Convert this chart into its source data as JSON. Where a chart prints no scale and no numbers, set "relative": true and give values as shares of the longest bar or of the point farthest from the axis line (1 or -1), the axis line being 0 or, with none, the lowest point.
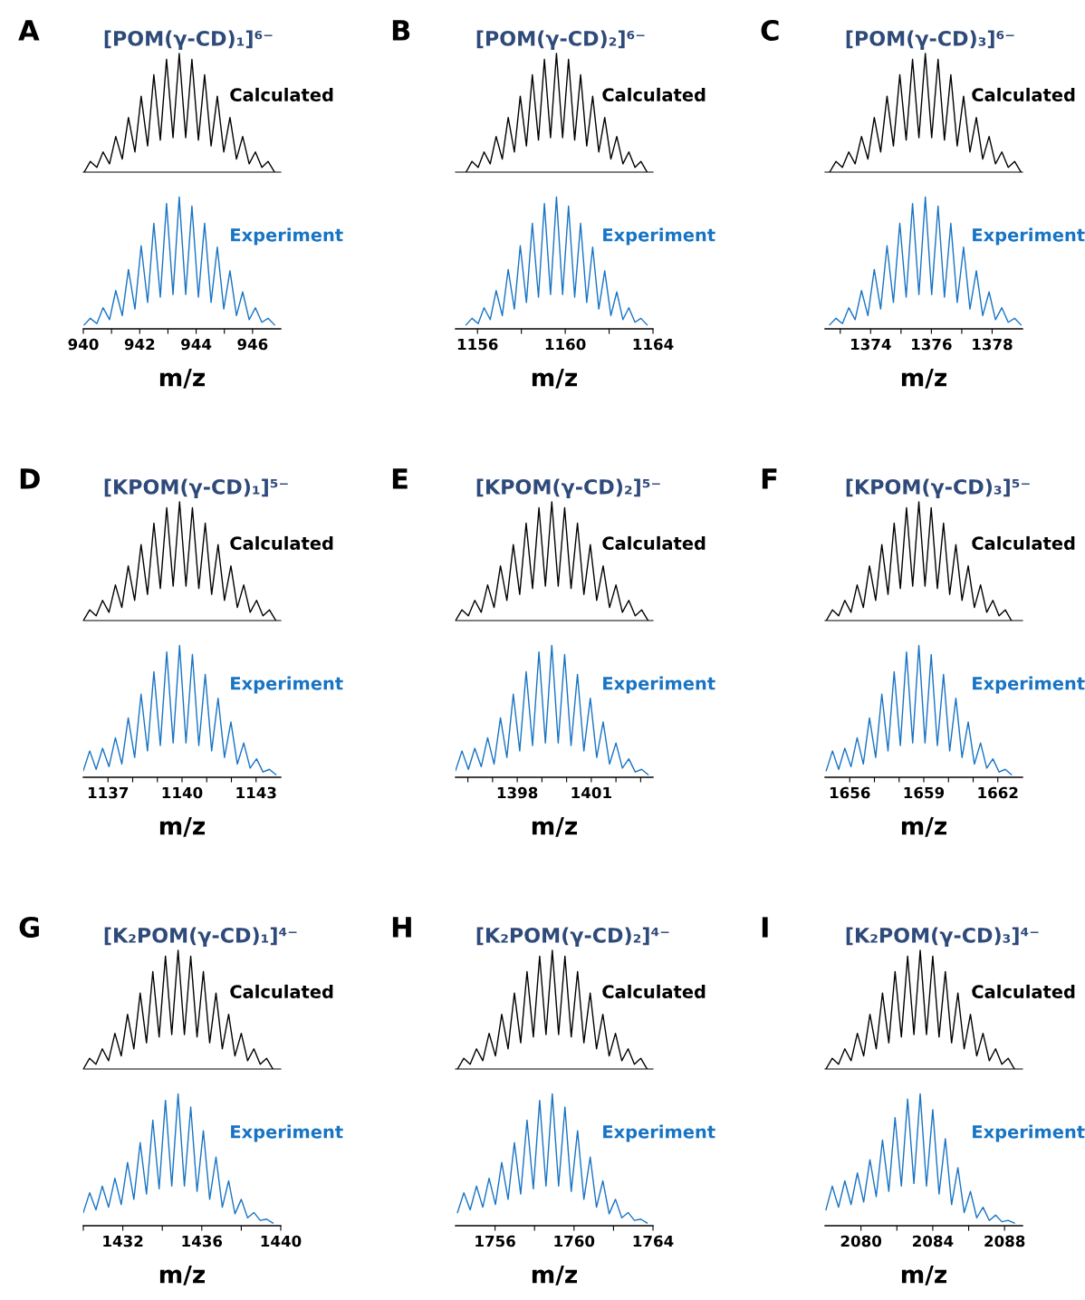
{
  "chart_data": [
    {
      "type": "line",
      "relative": true,
      "title": "[POM(γ-CD)₁]⁶⁻",
      "annotations": [
        "A"
      ],
      "xlim": [
        940,
        947
      ],
      "tick_labels": false,
      "x": [
        940.03,
        940.25,
        940.48,
        940.7,
        940.93,
        941.15,
        941.38,
        941.6,
        941.83,
        942.05,
        942.28,
        942.5,
        942.73,
        942.95,
        943.18,
        943.4,
        943.63,
        943.85,
        944.08,
        944.3,
        944.53,
        944.75,
        944.98,
        945.2,
        945.43,
        945.65,
        945.88,
        946.1,
        946.33,
        946.55,
        946.78
      ],
      "series": [
        {
          "name": "Calculated",
          "color": "#000000",
          "values": [
            0.0,
            0.09,
            0.04,
            0.17,
            0.07,
            0.3,
            0.11,
            0.46,
            0.17,
            0.64,
            0.22,
            0.82,
            0.27,
            0.95,
            0.29,
            1.0,
            0.29,
            0.95,
            0.27,
            0.82,
            0.22,
            0.64,
            0.17,
            0.46,
            0.11,
            0.3,
            0.07,
            0.17,
            0.04,
            0.09,
            0.0
          ]
        }
      ]
    },
    {
      "type": "line",
      "relative": true,
      "xlabel": "m/z",
      "xlim": [
        940,
        947
      ],
      "xticks": [
        940,
        {
          "value": 941,
          "label": null
        },
        942,
        {
          "value": 943,
          "label": null
        },
        944,
        {
          "value": 945,
          "label": null
        },
        946
      ],
      "tick_labels": "x",
      "x": [
        940.03,
        940.25,
        940.48,
        940.7,
        940.93,
        941.15,
        941.38,
        941.6,
        941.83,
        942.05,
        942.28,
        942.5,
        942.73,
        942.95,
        943.18,
        943.4,
        943.63,
        943.85,
        944.08,
        944.3,
        944.53,
        944.75,
        944.98,
        945.2,
        945.43,
        945.65,
        945.88,
        946.1,
        946.33,
        946.55,
        946.78
      ],
      "series": [
        {
          "name": "Experiment",
          "color": "#1874c4",
          "values": [
            0.03,
            0.08,
            0.04,
            0.16,
            0.07,
            0.29,
            0.1,
            0.45,
            0.15,
            0.63,
            0.2,
            0.8,
            0.24,
            0.95,
            0.26,
            1.0,
            0.26,
            0.93,
            0.24,
            0.8,
            0.2,
            0.62,
            0.15,
            0.44,
            0.1,
            0.28,
            0.07,
            0.16,
            0.05,
            0.08,
            0.03
          ]
        }
      ]
    },
    {
      "type": "line",
      "relative": true,
      "title": "[POM(γ-CD)₂]⁶⁻",
      "annotations": [
        "B"
      ],
      "xlim": [
        1155,
        1164
      ],
      "tick_labels": false,
      "x": [
        1155.48,
        1155.75,
        1156.03,
        1156.3,
        1156.58,
        1156.85,
        1157.13,
        1157.4,
        1157.68,
        1157.95,
        1158.23,
        1158.5,
        1158.78,
        1159.05,
        1159.33,
        1159.6,
        1159.88,
        1160.15,
        1160.43,
        1160.7,
        1160.98,
        1161.25,
        1161.53,
        1161.8,
        1162.08,
        1162.35,
        1162.63,
        1162.9,
        1163.18,
        1163.45,
        1163.73
      ],
      "series": [
        {
          "name": "Calculated",
          "color": "#000000",
          "values": [
            0.0,
            0.09,
            0.04,
            0.17,
            0.07,
            0.3,
            0.11,
            0.46,
            0.17,
            0.64,
            0.22,
            0.82,
            0.27,
            0.95,
            0.29,
            1.0,
            0.29,
            0.95,
            0.27,
            0.82,
            0.22,
            0.64,
            0.17,
            0.46,
            0.11,
            0.3,
            0.07,
            0.17,
            0.04,
            0.09,
            0.0
          ]
        }
      ]
    },
    {
      "type": "line",
      "relative": true,
      "xlabel": "m/z",
      "xlim": [
        1155,
        1164
      ],
      "xticks": [
        1156,
        {
          "value": 1158,
          "label": null
        },
        1160,
        {
          "value": 1162,
          "label": null
        },
        1164
      ],
      "tick_labels": "x",
      "x": [
        1155.48,
        1155.75,
        1156.03,
        1156.3,
        1156.58,
        1156.85,
        1157.13,
        1157.4,
        1157.68,
        1157.95,
        1158.23,
        1158.5,
        1158.78,
        1159.05,
        1159.33,
        1159.6,
        1159.88,
        1160.15,
        1160.43,
        1160.7,
        1160.98,
        1161.25,
        1161.53,
        1161.8,
        1162.08,
        1162.35,
        1162.63,
        1162.9,
        1163.18,
        1163.45,
        1163.73
      ],
      "series": [
        {
          "name": "Experiment",
          "color": "#1874c4",
          "values": [
            0.03,
            0.08,
            0.04,
            0.16,
            0.07,
            0.29,
            0.1,
            0.45,
            0.15,
            0.63,
            0.2,
            0.8,
            0.24,
            0.95,
            0.26,
            1.0,
            0.26,
            0.93,
            0.24,
            0.8,
            0.2,
            0.62,
            0.15,
            0.44,
            0.1,
            0.28,
            0.07,
            0.16,
            0.05,
            0.08,
            0.03
          ]
        }
      ]
    },
    {
      "type": "line",
      "relative": true,
      "title": "[POM(γ-CD)₃]⁶⁻",
      "annotations": [
        "C"
      ],
      "xlim": [
        1372.5,
        1379
      ],
      "tick_labels": false,
      "x": [
        1372.65,
        1372.86,
        1373.07,
        1373.28,
        1373.49,
        1373.7,
        1373.91,
        1374.12,
        1374.33,
        1374.54,
        1374.75,
        1374.96,
        1375.17,
        1375.38,
        1375.59,
        1375.8,
        1376.01,
        1376.22,
        1376.43,
        1376.64,
        1376.85,
        1377.06,
        1377.27,
        1377.48,
        1377.69,
        1377.9,
        1378.11,
        1378.32,
        1378.53,
        1378.74,
        1378.95
      ],
      "series": [
        {
          "name": "Calculated",
          "color": "#000000",
          "values": [
            0.0,
            0.09,
            0.04,
            0.17,
            0.07,
            0.3,
            0.11,
            0.46,
            0.17,
            0.64,
            0.22,
            0.82,
            0.27,
            0.95,
            0.29,
            1.0,
            0.29,
            0.95,
            0.27,
            0.82,
            0.22,
            0.64,
            0.17,
            0.46,
            0.11,
            0.3,
            0.07,
            0.17,
            0.04,
            0.09,
            0.0
          ]
        }
      ]
    },
    {
      "type": "line",
      "relative": true,
      "xlabel": "m/z",
      "xlim": [
        1372.5,
        1379
      ],
      "xticks": [
        {
          "value": 1373,
          "label": null
        },
        1374,
        {
          "value": 1375,
          "label": null
        },
        1376,
        {
          "value": 1377,
          "label": null
        },
        1378
      ],
      "tick_labels": "x",
      "x": [
        1372.65,
        1372.86,
        1373.07,
        1373.28,
        1373.49,
        1373.7,
        1373.91,
        1374.12,
        1374.33,
        1374.54,
        1374.75,
        1374.96,
        1375.17,
        1375.38,
        1375.59,
        1375.8,
        1376.01,
        1376.22,
        1376.43,
        1376.64,
        1376.85,
        1377.06,
        1377.27,
        1377.48,
        1377.69,
        1377.9,
        1378.11,
        1378.32,
        1378.53,
        1378.74,
        1378.95
      ],
      "series": [
        {
          "name": "Experiment",
          "color": "#1874c4",
          "values": [
            0.03,
            0.08,
            0.04,
            0.16,
            0.07,
            0.29,
            0.1,
            0.45,
            0.15,
            0.63,
            0.2,
            0.8,
            0.24,
            0.95,
            0.26,
            1.0,
            0.26,
            0.93,
            0.24,
            0.8,
            0.2,
            0.62,
            0.15,
            0.44,
            0.1,
            0.28,
            0.07,
            0.16,
            0.05,
            0.08,
            0.03
          ]
        }
      ]
    },
    {
      "type": "line",
      "relative": true,
      "title": "[KPOM(γ-CD)₁]⁵⁻",
      "annotations": [
        "D"
      ],
      "xlim": [
        1136,
        1144
      ],
      "tick_labels": false,
      "x": [
        1136.0,
        1136.26,
        1136.52,
        1136.78,
        1137.04,
        1137.3,
        1137.56,
        1137.82,
        1138.08,
        1138.34,
        1138.6,
        1138.86,
        1139.12,
        1139.38,
        1139.64,
        1139.9,
        1140.16,
        1140.42,
        1140.68,
        1140.94,
        1141.2,
        1141.46,
        1141.72,
        1141.98,
        1142.24,
        1142.5,
        1142.76,
        1143.02,
        1143.28,
        1143.54,
        1143.8
      ],
      "series": [
        {
          "name": "Calculated",
          "color": "#000000",
          "values": [
            0.0,
            0.09,
            0.04,
            0.17,
            0.07,
            0.3,
            0.11,
            0.46,
            0.17,
            0.64,
            0.22,
            0.82,
            0.27,
            0.95,
            0.29,
            1.0,
            0.29,
            0.95,
            0.27,
            0.82,
            0.22,
            0.64,
            0.17,
            0.46,
            0.11,
            0.3,
            0.07,
            0.17,
            0.04,
            0.09,
            0.0
          ]
        }
      ]
    },
    {
      "type": "line",
      "relative": true,
      "xlabel": "m/z",
      "xlim": [
        1136,
        1144
      ],
      "xticks": [
        1137,
        {
          "value": 1138,
          "label": null
        },
        {
          "value": 1139,
          "label": null
        },
        1140,
        {
          "value": 1141,
          "label": null
        },
        {
          "value": 1142,
          "label": null
        },
        1143
      ],
      "tick_labels": "x",
      "x": [
        1136.0,
        1136.26,
        1136.52,
        1136.78,
        1137.04,
        1137.3,
        1137.56,
        1137.82,
        1138.08,
        1138.34,
        1138.6,
        1138.86,
        1139.12,
        1139.38,
        1139.64,
        1139.9,
        1140.16,
        1140.42,
        1140.68,
        1140.94,
        1141.2,
        1141.46,
        1141.72,
        1141.98,
        1142.24,
        1142.5,
        1142.76,
        1143.02,
        1143.28,
        1143.54,
        1143.8
      ],
      "series": [
        {
          "name": "Experiment",
          "color": "#1874c4",
          "values": [
            0.05,
            0.2,
            0.06,
            0.22,
            0.08,
            0.3,
            0.1,
            0.45,
            0.15,
            0.63,
            0.2,
            0.8,
            0.24,
            0.95,
            0.26,
            1.0,
            0.26,
            0.93,
            0.24,
            0.78,
            0.2,
            0.6,
            0.15,
            0.42,
            0.1,
            0.26,
            0.07,
            0.14,
            0.04,
            0.06,
            0.02
          ]
        }
      ]
    },
    {
      "type": "line",
      "relative": true,
      "title": "[KPOM(γ-CD)₂]⁵⁻",
      "annotations": [
        "E"
      ],
      "xlim": [
        1395.5,
        1403.5
      ],
      "tick_labels": false,
      "x": [
        1395.5,
        1395.76,
        1396.02,
        1396.28,
        1396.54,
        1396.8,
        1397.06,
        1397.32,
        1397.58,
        1397.84,
        1398.1,
        1398.36,
        1398.62,
        1398.88,
        1399.14,
        1399.4,
        1399.66,
        1399.92,
        1400.18,
        1400.44,
        1400.7,
        1400.96,
        1401.22,
        1401.48,
        1401.74,
        1402.0,
        1402.26,
        1402.52,
        1402.78,
        1403.04,
        1403.3
      ],
      "series": [
        {
          "name": "Calculated",
          "color": "#000000",
          "values": [
            0.0,
            0.09,
            0.04,
            0.17,
            0.07,
            0.3,
            0.11,
            0.46,
            0.17,
            0.64,
            0.22,
            0.82,
            0.27,
            0.95,
            0.29,
            1.0,
            0.29,
            0.95,
            0.27,
            0.82,
            0.22,
            0.64,
            0.17,
            0.46,
            0.11,
            0.3,
            0.07,
            0.17,
            0.04,
            0.09,
            0.0
          ]
        }
      ]
    },
    {
      "type": "line",
      "relative": true,
      "xlabel": "m/z",
      "xlim": [
        1395.5,
        1403.5
      ],
      "xticks": [
        {
          "value": 1396,
          "label": null
        },
        {
          "value": 1397,
          "label": null
        },
        1398,
        {
          "value": 1399,
          "label": null
        },
        {
          "value": 1400,
          "label": null
        },
        1401,
        {
          "value": 1402,
          "label": null
        },
        {
          "value": 1403,
          "label": null
        }
      ],
      "tick_labels": "x",
      "x": [
        1395.5,
        1395.76,
        1396.02,
        1396.28,
        1396.54,
        1396.8,
        1397.06,
        1397.32,
        1397.58,
        1397.84,
        1398.1,
        1398.36,
        1398.62,
        1398.88,
        1399.14,
        1399.4,
        1399.66,
        1399.92,
        1400.18,
        1400.44,
        1400.7,
        1400.96,
        1401.22,
        1401.48,
        1401.74,
        1402.0,
        1402.26,
        1402.52,
        1402.78,
        1403.04,
        1403.3
      ],
      "series": [
        {
          "name": "Experiment",
          "color": "#1874c4",
          "values": [
            0.05,
            0.2,
            0.06,
            0.22,
            0.08,
            0.3,
            0.1,
            0.45,
            0.15,
            0.63,
            0.2,
            0.8,
            0.24,
            0.95,
            0.26,
            1.0,
            0.26,
            0.93,
            0.24,
            0.78,
            0.2,
            0.6,
            0.15,
            0.42,
            0.1,
            0.26,
            0.07,
            0.14,
            0.04,
            0.06,
            0.02
          ]
        }
      ]
    },
    {
      "type": "line",
      "relative": true,
      "title": "[KPOM(γ-CD)₃]⁵⁻",
      "annotations": [
        "F"
      ],
      "xlim": [
        1655,
        1663
      ],
      "tick_labels": false,
      "x": [
        1655.05,
        1655.3,
        1655.55,
        1655.8,
        1656.05,
        1656.3,
        1656.55,
        1656.8,
        1657.05,
        1657.3,
        1657.55,
        1657.8,
        1658.05,
        1658.3,
        1658.55,
        1658.8,
        1659.05,
        1659.3,
        1659.55,
        1659.8,
        1660.05,
        1660.3,
        1660.55,
        1660.8,
        1661.05,
        1661.3,
        1661.55,
        1661.8,
        1662.05,
        1662.3,
        1662.55
      ],
      "series": [
        {
          "name": "Calculated",
          "color": "#000000",
          "values": [
            0.0,
            0.09,
            0.04,
            0.17,
            0.07,
            0.3,
            0.11,
            0.46,
            0.17,
            0.64,
            0.22,
            0.82,
            0.27,
            0.95,
            0.29,
            1.0,
            0.29,
            0.95,
            0.27,
            0.82,
            0.22,
            0.64,
            0.17,
            0.46,
            0.11,
            0.3,
            0.07,
            0.17,
            0.04,
            0.09,
            0.0
          ]
        }
      ]
    },
    {
      "type": "line",
      "relative": true,
      "xlabel": "m/z",
      "xlim": [
        1655,
        1663
      ],
      "xticks": [
        1656,
        {
          "value": 1657,
          "label": null
        },
        {
          "value": 1658,
          "label": null
        },
        1659,
        {
          "value": 1660,
          "label": null
        },
        {
          "value": 1661,
          "label": null
        },
        1662
      ],
      "tick_labels": "x",
      "x": [
        1655.05,
        1655.3,
        1655.55,
        1655.8,
        1656.05,
        1656.3,
        1656.55,
        1656.8,
        1657.05,
        1657.3,
        1657.55,
        1657.8,
        1658.05,
        1658.3,
        1658.55,
        1658.8,
        1659.05,
        1659.3,
        1659.55,
        1659.8,
        1660.05,
        1660.3,
        1660.55,
        1660.8,
        1661.05,
        1661.3,
        1661.55,
        1661.8,
        1662.05,
        1662.3,
        1662.55
      ],
      "series": [
        {
          "name": "Experiment",
          "color": "#1874c4",
          "values": [
            0.05,
            0.2,
            0.06,
            0.22,
            0.08,
            0.3,
            0.1,
            0.45,
            0.15,
            0.63,
            0.2,
            0.8,
            0.24,
            0.95,
            0.26,
            1.0,
            0.26,
            0.93,
            0.24,
            0.78,
            0.2,
            0.6,
            0.15,
            0.42,
            0.1,
            0.26,
            0.07,
            0.14,
            0.04,
            0.06,
            0.02
          ]
        }
      ]
    },
    {
      "type": "line",
      "relative": true,
      "title": "[K₂POM(γ-CD)₁]⁴⁻",
      "annotations": [
        "G"
      ],
      "xlim": [
        1430,
        1440
      ],
      "tick_labels": false,
      "x": [
        1430.0,
        1430.32,
        1430.64,
        1430.96,
        1431.28,
        1431.6,
        1431.92,
        1432.24,
        1432.56,
        1432.88,
        1433.2,
        1433.52,
        1433.84,
        1434.16,
        1434.48,
        1434.8,
        1435.12,
        1435.44,
        1435.76,
        1436.08,
        1436.4,
        1436.72,
        1437.04,
        1437.36,
        1437.68,
        1438.0,
        1438.32,
        1438.64,
        1438.96,
        1439.28,
        1439.6
      ],
      "series": [
        {
          "name": "Calculated",
          "color": "#000000",
          "values": [
            0.0,
            0.09,
            0.04,
            0.17,
            0.07,
            0.3,
            0.11,
            0.46,
            0.17,
            0.64,
            0.22,
            0.82,
            0.27,
            0.95,
            0.29,
            1.0,
            0.29,
            0.95,
            0.27,
            0.82,
            0.22,
            0.64,
            0.17,
            0.46,
            0.11,
            0.3,
            0.07,
            0.17,
            0.04,
            0.09,
            0.0
          ]
        }
      ]
    },
    {
      "type": "line",
      "relative": true,
      "xlabel": "m/z",
      "xlim": [
        1430,
        1440
      ],
      "xticks": [
        {
          "value": 1430,
          "label": null
        },
        1432,
        {
          "value": 1434,
          "label": null
        },
        1436,
        {
          "value": 1438,
          "label": null
        },
        1440
      ],
      "tick_labels": "x",
      "x": [
        1430.0,
        1430.32,
        1430.64,
        1430.96,
        1431.28,
        1431.6,
        1431.92,
        1432.24,
        1432.56,
        1432.88,
        1433.2,
        1433.52,
        1433.84,
        1434.16,
        1434.48,
        1434.8,
        1435.12,
        1435.44,
        1435.76,
        1436.08,
        1436.4,
        1436.72,
        1437.04,
        1437.36,
        1437.68,
        1438.0,
        1438.32,
        1438.64,
        1438.96,
        1439.28,
        1439.6
      ],
      "series": [
        {
          "name": "Experiment",
          "color": "#1874c4",
          "values": [
            0.1,
            0.25,
            0.12,
            0.3,
            0.14,
            0.36,
            0.16,
            0.48,
            0.2,
            0.63,
            0.24,
            0.8,
            0.28,
            0.95,
            0.3,
            1.0,
            0.3,
            0.9,
            0.26,
            0.72,
            0.2,
            0.52,
            0.14,
            0.34,
            0.09,
            0.2,
            0.06,
            0.1,
            0.04,
            0.05,
            0.02
          ]
        }
      ]
    },
    {
      "type": "line",
      "relative": true,
      "title": "[K₂POM(γ-CD)₂]⁴⁻",
      "annotations": [
        "H"
      ],
      "xlim": [
        1754,
        1764
      ],
      "tick_labels": false,
      "x": [
        1754.1,
        1754.42,
        1754.74,
        1755.06,
        1755.38,
        1755.7,
        1756.02,
        1756.34,
        1756.66,
        1756.98,
        1757.3,
        1757.62,
        1757.94,
        1758.26,
        1758.58,
        1758.9,
        1759.22,
        1759.54,
        1759.86,
        1760.18,
        1760.5,
        1760.82,
        1761.14,
        1761.46,
        1761.78,
        1762.1,
        1762.42,
        1762.74,
        1763.06,
        1763.38,
        1763.7
      ],
      "series": [
        {
          "name": "Calculated",
          "color": "#000000",
          "values": [
            0.0,
            0.09,
            0.04,
            0.17,
            0.07,
            0.3,
            0.11,
            0.46,
            0.17,
            0.64,
            0.22,
            0.82,
            0.27,
            0.95,
            0.29,
            1.0,
            0.29,
            0.95,
            0.27,
            0.82,
            0.22,
            0.64,
            0.17,
            0.46,
            0.11,
            0.3,
            0.07,
            0.17,
            0.04,
            0.09,
            0.0
          ]
        }
      ]
    },
    {
      "type": "line",
      "relative": true,
      "xlabel": "m/z",
      "xlim": [
        1754,
        1764
      ],
      "xticks": [
        1756,
        {
          "value": 1758,
          "label": null
        },
        1760,
        {
          "value": 1762,
          "label": null
        },
        1764
      ],
      "tick_labels": "x",
      "x": [
        1754.1,
        1754.42,
        1754.74,
        1755.06,
        1755.38,
        1755.7,
        1756.02,
        1756.34,
        1756.66,
        1756.98,
        1757.3,
        1757.62,
        1757.94,
        1758.26,
        1758.58,
        1758.9,
        1759.22,
        1759.54,
        1759.86,
        1760.18,
        1760.5,
        1760.82,
        1761.14,
        1761.46,
        1761.78,
        1762.1,
        1762.42,
        1762.74,
        1763.06,
        1763.38,
        1763.7
      ],
      "series": [
        {
          "name": "Experiment",
          "color": "#1874c4",
          "values": [
            0.1,
            0.25,
            0.12,
            0.3,
            0.14,
            0.36,
            0.16,
            0.48,
            0.2,
            0.63,
            0.24,
            0.8,
            0.28,
            0.95,
            0.3,
            1.0,
            0.3,
            0.9,
            0.26,
            0.72,
            0.2,
            0.52,
            0.14,
            0.34,
            0.09,
            0.2,
            0.06,
            0.1,
            0.04,
            0.05,
            0.02
          ]
        }
      ]
    },
    {
      "type": "line",
      "relative": true,
      "title": "[K₂POM(γ-CD)₃]⁴⁻",
      "annotations": [
        "I"
      ],
      "xlim": [
        2078,
        2089
      ],
      "tick_labels": false,
      "x": [
        2078.05,
        2078.4,
        2078.75,
        2079.1,
        2079.45,
        2079.8,
        2080.15,
        2080.5,
        2080.85,
        2081.2,
        2081.55,
        2081.9,
        2082.25,
        2082.6,
        2082.95,
        2083.3,
        2083.65,
        2084.0,
        2084.35,
        2084.7,
        2085.05,
        2085.4,
        2085.75,
        2086.1,
        2086.45,
        2086.8,
        2087.15,
        2087.5,
        2087.85,
        2088.2,
        2088.55
      ],
      "series": [
        {
          "name": "Calculated",
          "color": "#000000",
          "values": [
            0.0,
            0.09,
            0.04,
            0.17,
            0.07,
            0.3,
            0.11,
            0.46,
            0.17,
            0.64,
            0.22,
            0.82,
            0.27,
            0.95,
            0.29,
            1.0,
            0.29,
            0.95,
            0.27,
            0.82,
            0.22,
            0.64,
            0.17,
            0.46,
            0.11,
            0.3,
            0.07,
            0.17,
            0.04,
            0.09,
            0.0
          ]
        }
      ]
    },
    {
      "type": "line",
      "relative": true,
      "xlabel": "m/z",
      "xlim": [
        2078,
        2089
      ],
      "xticks": [
        2080,
        {
          "value": 2082,
          "label": null
        },
        2084,
        {
          "value": 2086,
          "label": null
        },
        2088
      ],
      "tick_labels": "x",
      "x": [
        2078.05,
        2078.4,
        2078.75,
        2079.1,
        2079.45,
        2079.8,
        2080.15,
        2080.5,
        2080.85,
        2081.2,
        2081.55,
        2081.9,
        2082.25,
        2082.6,
        2082.95,
        2083.3,
        2083.65,
        2084.0,
        2084.35,
        2084.7,
        2085.05,
        2085.4,
        2085.75,
        2086.1,
        2086.45,
        2086.8,
        2087.15,
        2087.5,
        2087.85,
        2088.2,
        2088.55
      ],
      "series": [
        {
          "name": "Experiment",
          "color": "#1874c4",
          "values": [
            0.12,
            0.3,
            0.14,
            0.34,
            0.16,
            0.4,
            0.18,
            0.5,
            0.22,
            0.65,
            0.26,
            0.82,
            0.3,
            0.96,
            0.32,
            1.0,
            0.3,
            0.88,
            0.24,
            0.66,
            0.16,
            0.44,
            0.1,
            0.26,
            0.06,
            0.14,
            0.04,
            0.08,
            0.03,
            0.04,
            0.02
          ]
        }
      ]
    }
  ]
}
